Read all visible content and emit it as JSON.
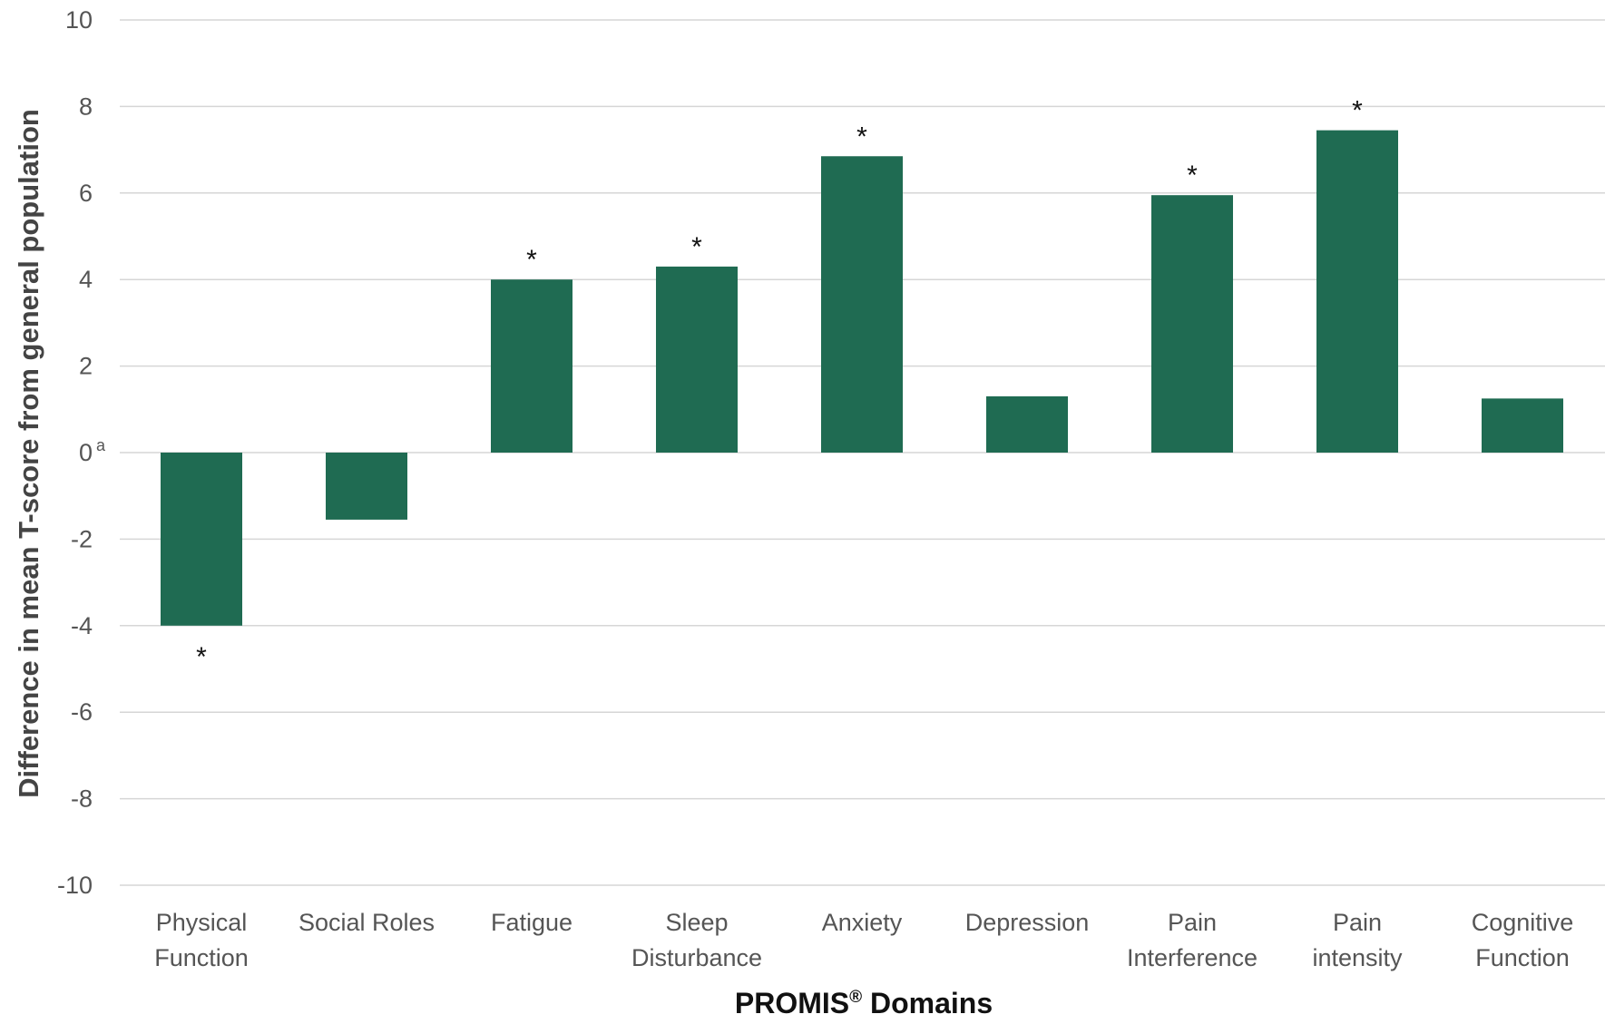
{
  "chart_data": {
    "type": "bar",
    "categories": [
      [
        "Physical",
        "Function"
      ],
      [
        "Social Roles"
      ],
      [
        "Fatigue"
      ],
      [
        "Sleep",
        "Disturbance"
      ],
      [
        "Anxiety"
      ],
      [
        "Depression"
      ],
      [
        "Pain",
        "Interference"
      ],
      [
        "Pain",
        "intensity"
      ],
      [
        "Cognitive",
        "Function"
      ]
    ],
    "values": [
      -4.0,
      -1.55,
      4.0,
      4.3,
      6.85,
      1.3,
      5.95,
      7.45,
      1.25
    ],
    "significant": [
      true,
      false,
      true,
      true,
      true,
      false,
      true,
      true,
      false
    ],
    "significance_marker": "*",
    "bar_color": "#1f6b52",
    "ylim": [
      -10,
      10
    ],
    "yticks": [
      "10",
      "8",
      "6",
      "4",
      "2",
      "0",
      "-2",
      "-4",
      "-6",
      "-8",
      "-10"
    ],
    "ytick_values": [
      10,
      8,
      6,
      4,
      2,
      0,
      -2,
      -4,
      -6,
      -8,
      -10
    ],
    "zero_tick_footnote": "a",
    "ylabel": "Difference in mean T-score from general population",
    "xlabel_main": "PROMIS",
    "xlabel_sup": "®",
    "xlabel_rest": " Domains",
    "grid": true,
    "legend": "none"
  }
}
